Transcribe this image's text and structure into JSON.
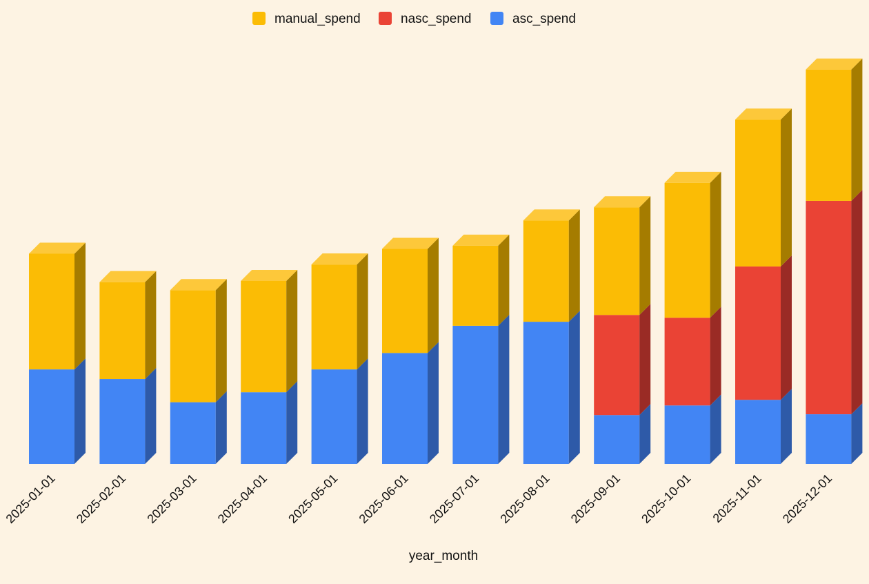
{
  "chart_data": {
    "type": "bar",
    "stacked": true,
    "style": "3d",
    "title": "",
    "xlabel": "year_month",
    "ylabel": "",
    "legend_position": "top-center",
    "grid": false,
    "ylim": [
      0,
      1000
    ],
    "categories": [
      "2025-01-01",
      "2025-02-01",
      "2025-03-01",
      "2025-04-01",
      "2025-05-01",
      "2025-06-01",
      "2025-07-01",
      "2025-08-01",
      "2025-09-01",
      "2025-10-01",
      "2025-11-01",
      "2025-12-01"
    ],
    "series": [
      {
        "name": "asc_spend",
        "color": "#4285f4",
        "side_color": "#2e5aa8",
        "values": [
          236,
          212,
          154,
          179,
          236,
          277,
          345,
          355,
          122,
          146,
          160,
          124
        ]
      },
      {
        "name": "nasc_spend",
        "color": "#ea4335",
        "side_color": "#9a2b25",
        "values": [
          0,
          0,
          0,
          0,
          0,
          0,
          0,
          0,
          250,
          219,
          333,
          533
        ]
      },
      {
        "name": "manual_spend",
        "color": "#fbbc05",
        "side_color": "#a57c00",
        "values": [
          289,
          242,
          280,
          278,
          262,
          260,
          200,
          253,
          269,
          337,
          367,
          328
        ]
      }
    ],
    "legend_order": [
      "manual_spend",
      "nasc_spend",
      "asc_spend"
    ],
    "top_face_color": "#fdc83a"
  }
}
